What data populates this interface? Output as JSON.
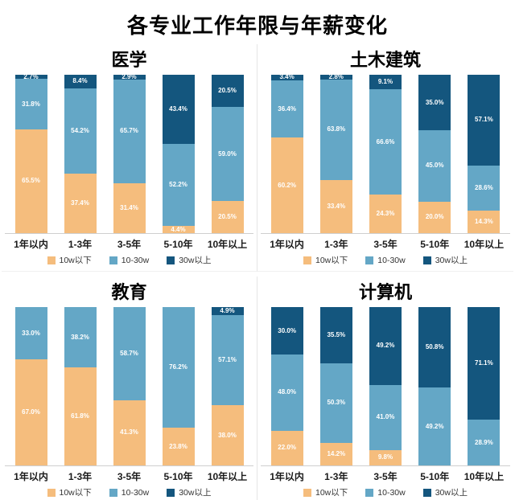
{
  "page": {
    "title": "各专业工作年限与年薪变化"
  },
  "colors": {
    "under_10w": "#f5bd7d",
    "between_10_30w": "#64a7c6",
    "over_30w": "#14567e"
  },
  "chart_data": [
    {
      "type": "bar",
      "stacked": true,
      "title": "医学",
      "categories": [
        "1年以内",
        "1-3年",
        "3-5年",
        "5-10年",
        "10年以上"
      ],
      "ylim": [
        0,
        100
      ],
      "value_format": "percent",
      "legend_position": "bottom",
      "series": [
        {
          "name": "10w以下",
          "color": "#f5bd7d",
          "values": [
            65.5,
            37.4,
            31.4,
            4.4,
            20.5
          ]
        },
        {
          "name": "10-30w",
          "color": "#64a7c6",
          "values": [
            31.8,
            54.2,
            65.7,
            52.2,
            59.0
          ]
        },
        {
          "name": "30w以上",
          "color": "#14567e",
          "values": [
            2.7,
            8.4,
            2.9,
            43.4,
            20.5
          ]
        }
      ]
    },
    {
      "type": "bar",
      "stacked": true,
      "title": "土木建筑",
      "categories": [
        "1年以内",
        "1-3年",
        "3-5年",
        "5-10年",
        "10年以上"
      ],
      "ylim": [
        0,
        100
      ],
      "value_format": "percent",
      "legend_position": "bottom",
      "series": [
        {
          "name": "10w以下",
          "color": "#f5bd7d",
          "values": [
            60.2,
            33.4,
            24.3,
            20.0,
            14.3
          ]
        },
        {
          "name": "10-30w",
          "color": "#64a7c6",
          "values": [
            36.4,
            63.8,
            66.6,
            45.0,
            28.6
          ]
        },
        {
          "name": "30w以上",
          "color": "#14567e",
          "values": [
            3.4,
            2.8,
            9.1,
            35.0,
            57.1
          ]
        }
      ]
    },
    {
      "type": "bar",
      "stacked": true,
      "title": "教育",
      "categories": [
        "1年以内",
        "1-3年",
        "3-5年",
        "5-10年",
        "10年以上"
      ],
      "ylim": [
        0,
        100
      ],
      "value_format": "percent",
      "legend_position": "bottom",
      "series": [
        {
          "name": "10w以下",
          "color": "#f5bd7d",
          "values": [
            67.0,
            61.8,
            41.3,
            23.8,
            38.0
          ]
        },
        {
          "name": "10-30w",
          "color": "#64a7c6",
          "values": [
            33.0,
            38.2,
            58.7,
            76.2,
            57.1
          ]
        },
        {
          "name": "30w以上",
          "color": "#14567e",
          "values": [
            0,
            0,
            0,
            0,
            4.9
          ]
        }
      ]
    },
    {
      "type": "bar",
      "stacked": true,
      "title": "计算机",
      "categories": [
        "1年以内",
        "1-3年",
        "3-5年",
        "5-10年",
        "10年以上"
      ],
      "ylim": [
        0,
        100
      ],
      "value_format": "percent",
      "legend_position": "bottom",
      "series": [
        {
          "name": "10w以下",
          "color": "#f5bd7d",
          "values": [
            22.0,
            14.2,
            9.8,
            0,
            0
          ]
        },
        {
          "name": "10-30w",
          "color": "#64a7c6",
          "values": [
            48.0,
            50.3,
            41.0,
            49.2,
            28.9
          ]
        },
        {
          "name": "30w以上",
          "color": "#14567e",
          "values": [
            30.0,
            35.5,
            49.2,
            50.8,
            71.1
          ]
        }
      ]
    }
  ]
}
